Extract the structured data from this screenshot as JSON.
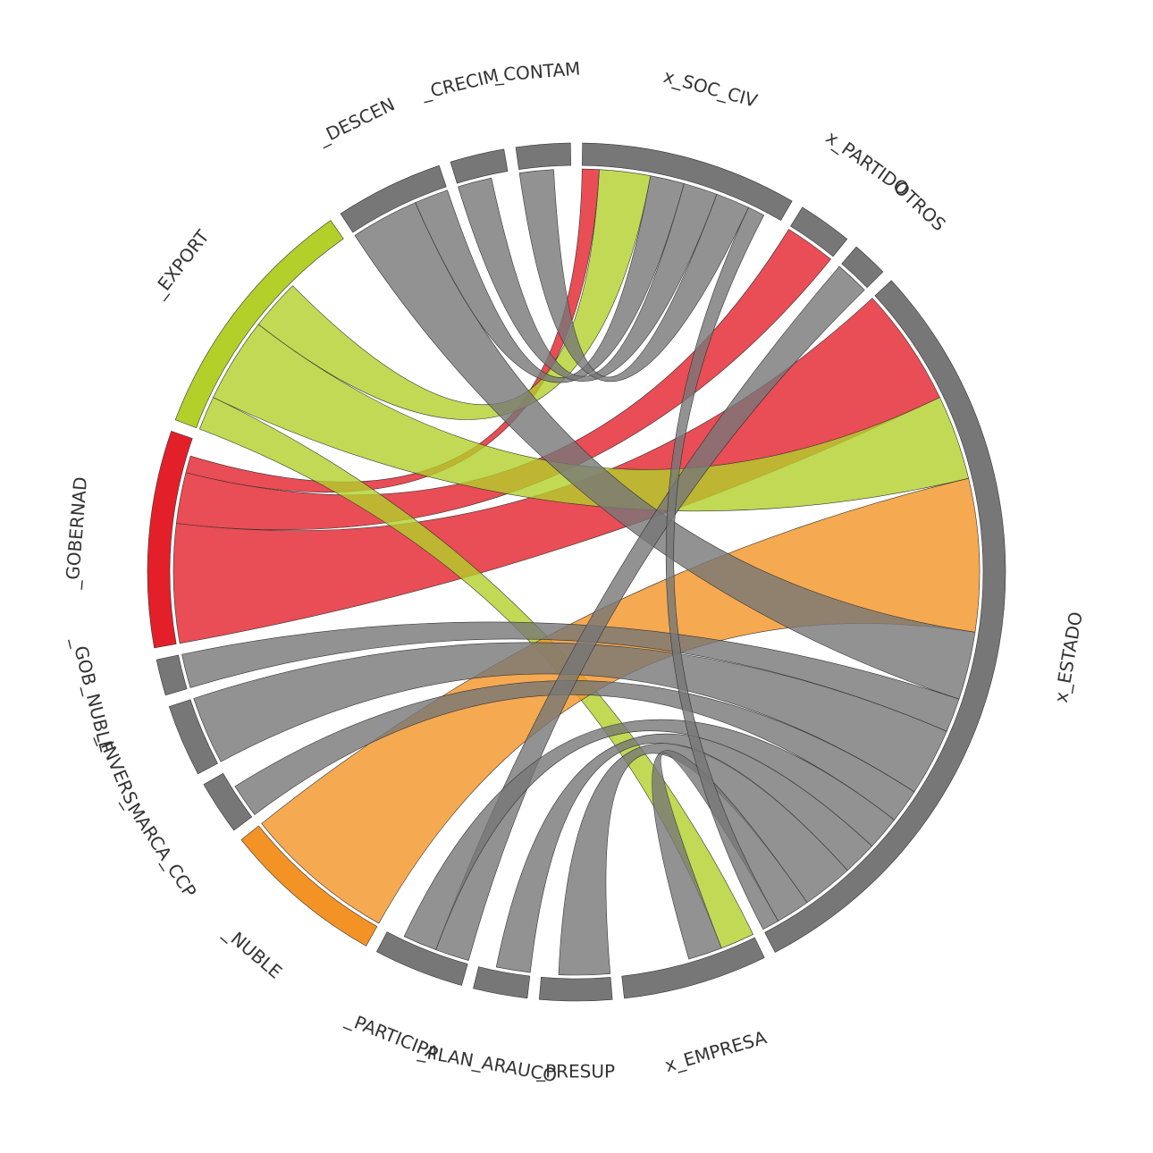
{
  "chart_data": {
    "type": "chord",
    "segments": [
      {
        "name": "x_SOC_CIV",
        "size": 12,
        "color": "#777777"
      },
      {
        "name": "x_PARTIDO",
        "size": 3,
        "color": "#777777"
      },
      {
        "name": "OTROS",
        "size": 2,
        "color": "#777777"
      },
      {
        "name": "x_ESTADO",
        "size": 43,
        "color": "#777777"
      },
      {
        "name": "x_EMPRESA",
        "size": 8,
        "color": "#777777"
      },
      {
        "name": "_PRESUP",
        "size": 4,
        "color": "#777777"
      },
      {
        "name": "_PLAN_ARAUCO",
        "size": 3,
        "color": "#777777"
      },
      {
        "name": "_PARTICIPA",
        "size": 5,
        "color": "#777777"
      },
      {
        "name": "_NUBLE",
        "size": 9,
        "color": "#f39325"
      },
      {
        "name": "_MARCA_CCP",
        "size": 3,
        "color": "#777777"
      },
      {
        "name": "_INVERS",
        "size": 4,
        "color": "#777777"
      },
      {
        "name": "_GOB_NUBLE",
        "size": 2,
        "color": "#777777"
      },
      {
        "name": "_GOBERNAD",
        "size": 12,
        "color": "#e3202a"
      },
      {
        "name": "_EXPORT",
        "size": 14,
        "color": "#b3cf2a"
      },
      {
        "name": "_DESCEN",
        "size": 6,
        "color": "#777777"
      },
      {
        "name": "_CRECIM",
        "size": 3,
        "color": "#777777"
      },
      {
        "name": "_CONTAM",
        "size": 3,
        "color": "#777777"
      }
    ],
    "links": [
      {
        "from": 12,
        "to": 3,
        "value": 7,
        "color": "#e3202a"
      },
      {
        "from": 12,
        "to": 1,
        "value": 3,
        "color": "#e3202a"
      },
      {
        "from": 12,
        "to": 0,
        "value": 1,
        "color": "#e3202a"
      },
      {
        "from": 13,
        "to": 4,
        "value": 2,
        "color": "#b3cf2a"
      },
      {
        "from": 13,
        "to": 3,
        "value": 5,
        "color": "#b3cf2a"
      },
      {
        "from": 13,
        "to": 0,
        "value": 3,
        "color": "#b3cf2a"
      },
      {
        "from": 8,
        "to": 3,
        "value": 9,
        "color": "#f39325"
      },
      {
        "from": 14,
        "to": 3,
        "value": 4,
        "color": "#777777"
      },
      {
        "from": 14,
        "to": 0,
        "value": 2,
        "color": "#777777"
      },
      {
        "from": 15,
        "to": 0,
        "value": 2,
        "color": "#777777"
      },
      {
        "from": 16,
        "to": 0,
        "value": 2,
        "color": "#777777"
      },
      {
        "from": 11,
        "to": 3,
        "value": 2,
        "color": "#777777"
      },
      {
        "from": 10,
        "to": 3,
        "value": 4,
        "color": "#777777"
      },
      {
        "from": 9,
        "to": 3,
        "value": 2,
        "color": "#777777"
      },
      {
        "from": 7,
        "to": 2,
        "value": 2,
        "color": "#777777"
      },
      {
        "from": 7,
        "to": 3,
        "value": 2,
        "color": "#777777"
      },
      {
        "from": 6,
        "to": 3,
        "value": 2,
        "color": "#777777"
      },
      {
        "from": 5,
        "to": 3,
        "value": 3,
        "color": "#777777"
      },
      {
        "from": 4,
        "to": 3,
        "value": 2,
        "color": "#777777"
      },
      {
        "from": 0,
        "to": 3,
        "value": 1,
        "color": "#777777"
      }
    ]
  }
}
